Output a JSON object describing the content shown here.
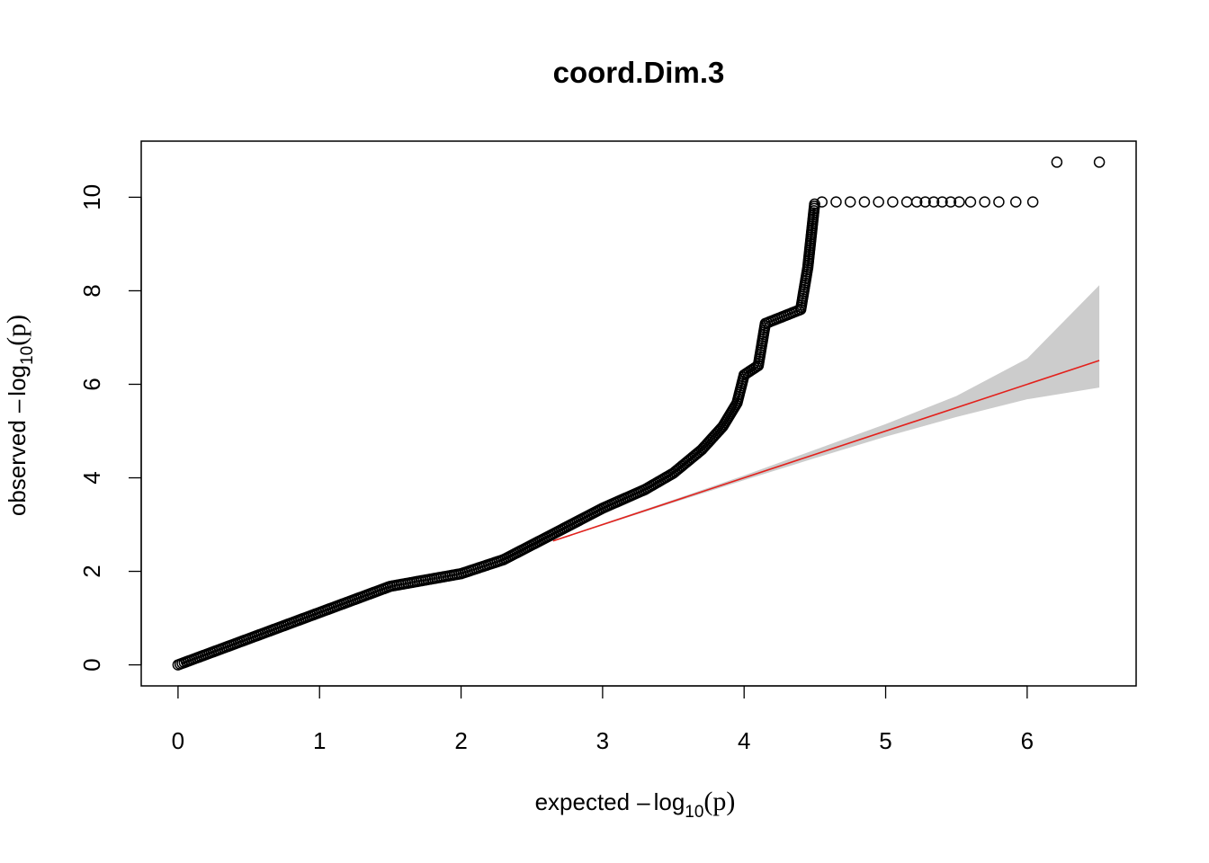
{
  "chart_data": {
    "type": "scatter",
    "title": "coord.Dim.3",
    "xlabel": {
      "prefix": "expected",
      "minus": "–",
      "log": "log",
      "sub": "10",
      "paren": "(p)"
    },
    "ylabel": {
      "prefix": "observed",
      "minus": "–",
      "log": "log",
      "sub": "10",
      "paren": "(p)"
    },
    "xlim": [
      -0.26,
      6.77
    ],
    "ylim": [
      -0.45,
      11.2
    ],
    "xticks": [
      "0",
      "1",
      "2",
      "3",
      "4",
      "5",
      "6"
    ],
    "yticks": [
      "0",
      "2",
      "4",
      "6",
      "8",
      "10"
    ],
    "grid": false,
    "series": [
      {
        "kind": "points",
        "color": "#000000",
        "dense_curve": [
          [
            0.0,
            0.0
          ],
          [
            0.5,
            0.56
          ],
          [
            1.0,
            1.12
          ],
          [
            1.5,
            1.68
          ],
          [
            2.0,
            1.95
          ],
          [
            2.3,
            2.25
          ],
          [
            2.6,
            2.72
          ],
          [
            3.0,
            3.35
          ],
          [
            3.3,
            3.75
          ],
          [
            3.5,
            4.1
          ],
          [
            3.7,
            4.6
          ],
          [
            3.85,
            5.1
          ],
          [
            3.95,
            5.6
          ],
          [
            4.0,
            6.2
          ],
          [
            4.1,
            6.4
          ],
          [
            4.15,
            7.3
          ],
          [
            4.4,
            7.6
          ],
          [
            4.45,
            8.5
          ],
          [
            4.5,
            9.9
          ]
        ],
        "points": [
          [
            4.55,
            9.9
          ],
          [
            4.65,
            9.9
          ],
          [
            4.75,
            9.9
          ],
          [
            4.85,
            9.9
          ],
          [
            4.95,
            9.9
          ],
          [
            5.05,
            9.9
          ],
          [
            5.15,
            9.9
          ],
          [
            5.22,
            9.9
          ],
          [
            5.28,
            9.9
          ],
          [
            5.34,
            9.9
          ],
          [
            5.4,
            9.9
          ],
          [
            5.46,
            9.9
          ],
          [
            5.52,
            9.9
          ],
          [
            5.6,
            9.9
          ],
          [
            5.7,
            9.9
          ],
          [
            5.8,
            9.9
          ],
          [
            5.92,
            9.9
          ],
          [
            6.04,
            9.9
          ],
          [
            6.21,
            10.75
          ],
          [
            6.51,
            10.75
          ]
        ]
      },
      {
        "kind": "reference-line",
        "color": "#e3211c",
        "x": [
          2.65,
          6.51
        ],
        "y": [
          2.65,
          6.51
        ]
      },
      {
        "kind": "confidence-band",
        "color": "#cccccc",
        "x": [
          2.65,
          3.5,
          4.0,
          4.5,
          5.0,
          5.5,
          6.0,
          6.51
        ],
        "lower": [
          2.64,
          3.47,
          3.95,
          4.42,
          4.88,
          5.3,
          5.68,
          5.93
        ],
        "upper": [
          2.66,
          3.53,
          4.05,
          4.6,
          5.15,
          5.75,
          6.55,
          8.12
        ]
      }
    ]
  }
}
